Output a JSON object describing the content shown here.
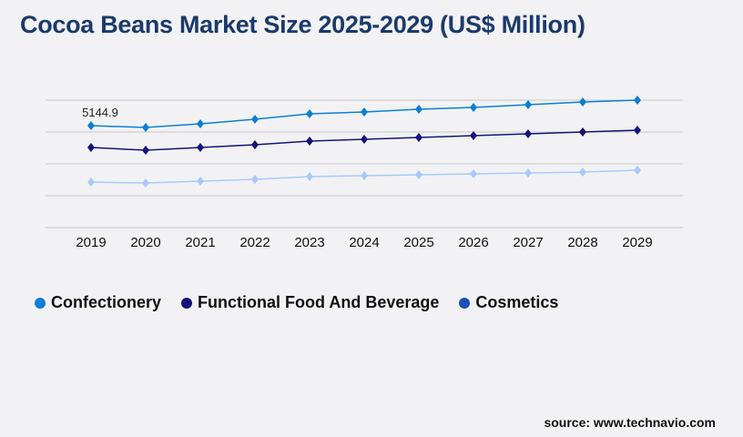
{
  "chart_data": {
    "type": "line",
    "title": "Cocoa Beans Market Size 2025-2029 (US$ Million)",
    "categories": [
      "2019",
      "2020",
      "2021",
      "2022",
      "2023",
      "2024",
      "2025",
      "2026",
      "2027",
      "2028",
      "2029"
    ],
    "ylim": [
      0,
      6432
    ],
    "grid": true,
    "legend_position": "bottom-left",
    "annotations": [
      {
        "series": "Confectionery",
        "x": "2019",
        "label": "5144.9"
      }
    ],
    "series": [
      {
        "name": "Confectionery",
        "color": "#0a7fd6",
        "marker_color": "#0a7fd6",
        "values": [
          5144.9,
          5053,
          5237,
          5467,
          5742,
          5834,
          5972,
          6064,
          6202,
          6340,
          6432
        ]
      },
      {
        "name": "Functional Food And Beverage",
        "color": "#14137a",
        "marker_color": "#14137a",
        "values": [
          4043,
          3905,
          4043,
          4181,
          4364,
          4456,
          4548,
          4640,
          4732,
          4824,
          4916
        ]
      },
      {
        "name": "Cosmetics",
        "color": "#a9c9fb",
        "marker_color": "#1a4fb5",
        "values": [
          2297,
          2251,
          2343,
          2435,
          2573,
          2619,
          2665,
          2711,
          2757,
          2802,
          2894
        ]
      }
    ]
  },
  "source": "source: www.technavio.com"
}
